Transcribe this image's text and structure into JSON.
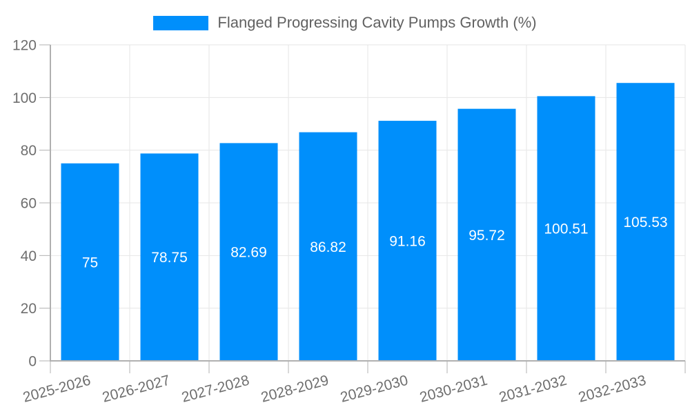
{
  "legend": {
    "label": "Flanged Progressing Cavity Pumps Growth (%)",
    "swatch_color": "#008FFB"
  },
  "chart_data": {
    "type": "bar",
    "title": "Flanged Progressing Cavity Pumps Growth (%)",
    "categories": [
      "2025-2026",
      "2026-2027",
      "2027-2028",
      "2028-2029",
      "2029-2030",
      "2030-2031",
      "2031-2032",
      "2032-2033"
    ],
    "values": [
      75,
      78.75,
      82.69,
      86.82,
      91.16,
      95.72,
      100.51,
      105.53
    ],
    "value_labels": [
      "75",
      "78.75",
      "82.69",
      "86.82",
      "91.16",
      "95.72",
      "100.51",
      "105.53"
    ],
    "xlabel": "",
    "ylabel": "",
    "ylim": [
      0,
      120
    ],
    "yticks": [
      0,
      20,
      40,
      60,
      80,
      100,
      120
    ],
    "ytick_labels": [
      "0",
      "20",
      "40",
      "60",
      "80",
      "100",
      "120"
    ],
    "grid": true,
    "legend_position": "top",
    "x_label_rotation": -15,
    "colors": {
      "bar": "#008FFB",
      "value_label": "#ffffff",
      "axis_text": "#6e6e6e",
      "legend_text": "#616161",
      "gridline": "#e6e6e6",
      "axis_line": "#b0b0b0",
      "background": "#ffffff"
    }
  }
}
